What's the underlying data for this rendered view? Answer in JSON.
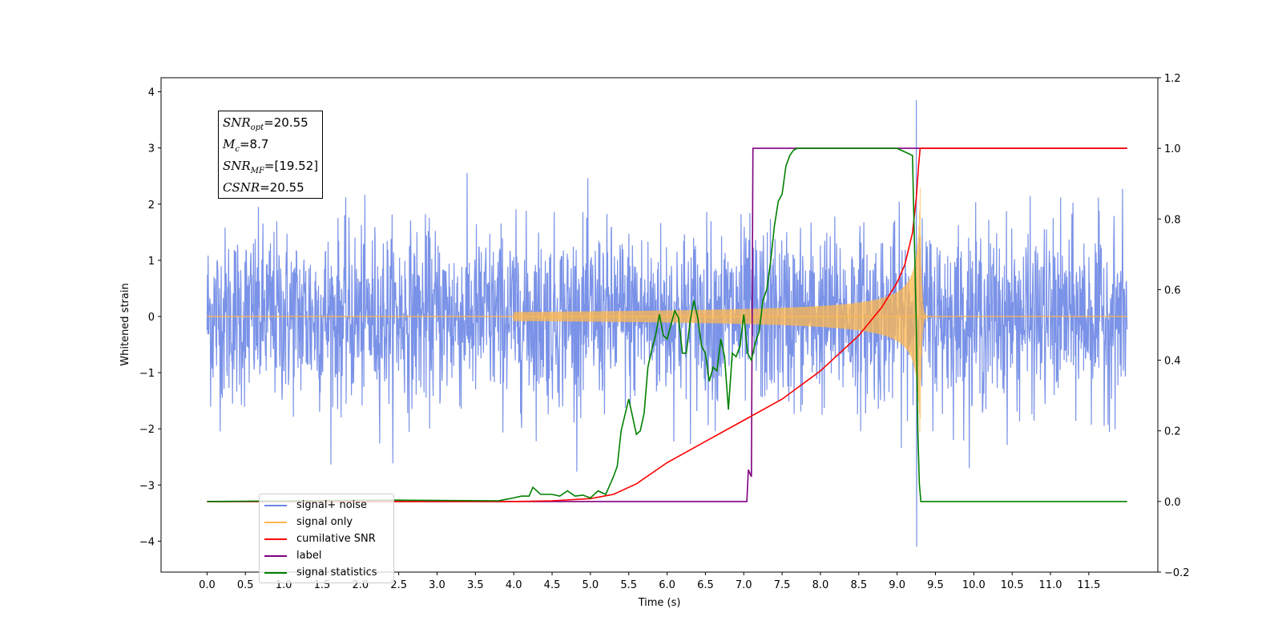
{
  "chart_data": {
    "type": "line",
    "xlabel": "Time (s)",
    "ylabel": "Whitened strain",
    "xlim": [
      -0.6,
      12.4
    ],
    "ylim": [
      -4.55,
      4.25
    ],
    "y2lim": [
      -0.2,
      1.2
    ],
    "x_ticks": [
      "0.0",
      "0.5",
      "1.0",
      "1.5",
      "2.0",
      "2.5",
      "3.0",
      "3.5",
      "4.0",
      "4.5",
      "5.0",
      "5.5",
      "6.0",
      "6.5",
      "7.0",
      "7.5",
      "8.0",
      "8.5",
      "9.0",
      "9.5",
      "10.0",
      "10.5",
      "11.0",
      "11.5"
    ],
    "y_ticks": [
      "4",
      "3",
      "2",
      "1",
      "0",
      "−1",
      "−2",
      "−3",
      "−4"
    ],
    "y2_ticks": [
      "1.2",
      "1.0",
      "0.8",
      "0.6",
      "0.4",
      "0.2",
      "0.0",
      "−0.2"
    ],
    "grid": false,
    "legend_position": "lower-left",
    "series": [
      {
        "name": "signal+ noise",
        "color": "#6b86e4",
        "axis": "left",
        "description_values": {
          "x_range": [
            0.0,
            12.0
          ],
          "typical_amplitude": 1.6,
          "peak_max": 3.85,
          "peak_min": -4.1,
          "spike_time": 9.25
        }
      },
      {
        "name": "signal only",
        "color": "#ffb74d",
        "axis": "left",
        "description_values": {
          "x_range": [
            0.0,
            12.0
          ],
          "start_rise": 4.0,
          "merger_time": 9.3,
          "peak_amplitude": 2.3
        }
      },
      {
        "name": "cumilative SNR",
        "color": "#ff0000",
        "axis": "right",
        "x": [
          0.0,
          4.0,
          4.5,
          5.0,
          5.3,
          5.6,
          6.0,
          6.5,
          7.0,
          7.5,
          8.0,
          8.5,
          8.8,
          9.0,
          9.1,
          9.2,
          9.25,
          9.28,
          9.3,
          12.0
        ],
        "y": [
          0.0,
          0.0,
          0.002,
          0.008,
          0.02,
          0.05,
          0.11,
          0.17,
          0.23,
          0.29,
          0.37,
          0.47,
          0.55,
          0.62,
          0.67,
          0.76,
          0.86,
          0.95,
          1.0,
          1.0
        ]
      },
      {
        "name": "label",
        "color": "#800080",
        "axis": "right",
        "x": [
          0.0,
          7.04,
          7.06,
          7.1,
          7.12,
          9.25,
          9.26,
          12.0
        ],
        "y": [
          0.0,
          0.0,
          0.09,
          0.07,
          1.0,
          1.0,
          1.0,
          1.0
        ]
      },
      {
        "name": "signal statistics",
        "color": "#008000",
        "axis": "right",
        "x": [
          0.0,
          2.3,
          3.8,
          4.0,
          4.1,
          4.2,
          4.25,
          4.35,
          4.5,
          4.6,
          4.7,
          4.8,
          4.9,
          5.0,
          5.1,
          5.2,
          5.3,
          5.35,
          5.4,
          5.5,
          5.6,
          5.65,
          5.7,
          5.75,
          5.8,
          5.85,
          5.9,
          5.95,
          6.0,
          6.05,
          6.1,
          6.15,
          6.2,
          6.25,
          6.3,
          6.35,
          6.4,
          6.45,
          6.5,
          6.55,
          6.6,
          6.65,
          6.7,
          6.75,
          6.8,
          6.85,
          6.9,
          6.95,
          7.0,
          7.05,
          7.1,
          7.15,
          7.2,
          7.25,
          7.3,
          7.35,
          7.4,
          7.45,
          7.5,
          7.55,
          7.6,
          7.65,
          7.7,
          7.75,
          7.8,
          7.85,
          7.9,
          8.0,
          8.5,
          9.0,
          9.2,
          9.25,
          9.27,
          9.29,
          9.31,
          12.0
        ],
        "y": [
          0.0,
          0.004,
          0.002,
          0.01,
          0.015,
          0.015,
          0.04,
          0.02,
          0.02,
          0.015,
          0.03,
          0.015,
          0.018,
          0.01,
          0.03,
          0.02,
          0.07,
          0.1,
          0.2,
          0.29,
          0.19,
          0.2,
          0.25,
          0.38,
          0.43,
          0.47,
          0.53,
          0.47,
          0.46,
          0.5,
          0.54,
          0.52,
          0.42,
          0.42,
          0.51,
          0.57,
          0.52,
          0.44,
          0.42,
          0.34,
          0.38,
          0.37,
          0.46,
          0.41,
          0.26,
          0.42,
          0.41,
          0.44,
          0.53,
          0.42,
          0.4,
          0.45,
          0.48,
          0.57,
          0.6,
          0.68,
          0.78,
          0.85,
          0.87,
          0.95,
          0.98,
          0.995,
          1.0,
          1.0,
          1.0,
          1.0,
          1.0,
          1.0,
          1.0,
          1.0,
          0.98,
          0.5,
          0.2,
          0.05,
          0.0,
          0.0
        ]
      }
    ],
    "annotation": {
      "snr_opt": "20.55",
      "mc": "8.7",
      "snr_mf": "[19.52]",
      "csnr": "20.55"
    }
  },
  "legend": {
    "items": [
      {
        "label": "signal+ noise",
        "color": "#6b86e4"
      },
      {
        "label": "signal only",
        "color": "#ffb74d"
      },
      {
        "label": "cumilative SNR",
        "color": "#ff0000"
      },
      {
        "label": "label",
        "color": "#800080"
      },
      {
        "label": "signal statistics",
        "color": "#008000"
      }
    ]
  }
}
